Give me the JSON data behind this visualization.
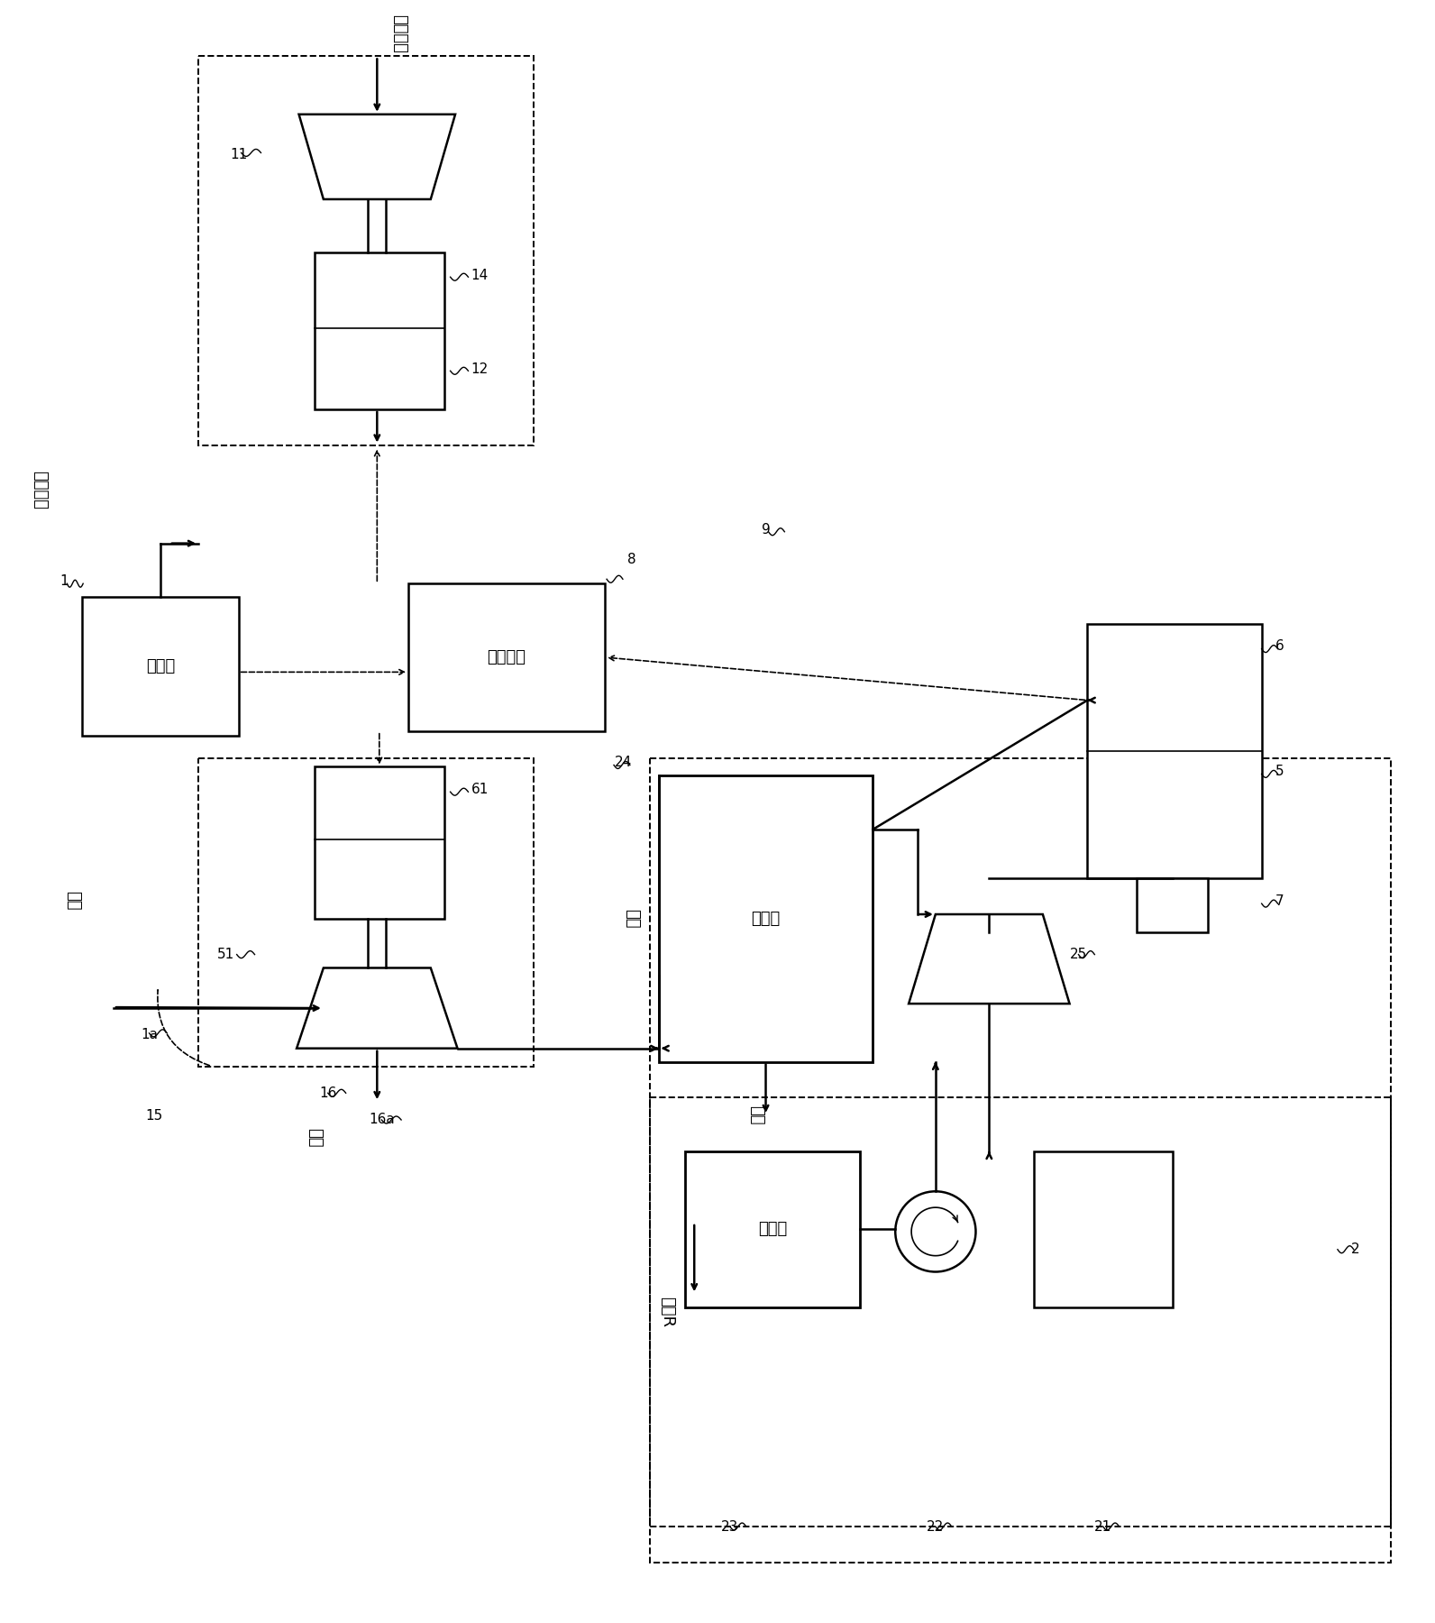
{
  "bg_color": "#ffffff",
  "lc": "#000000",
  "fig_width": 15.92,
  "fig_height": 18.0,
  "labels": {
    "engine": "发动机",
    "battery": "专用电池",
    "evaporator": "蒸发器",
    "condenser": "冷凝器",
    "compressed_air": "压缩空气",
    "intake_air": "吸入空气",
    "exhaust": "排气",
    "medium_R": "介质R"
  }
}
